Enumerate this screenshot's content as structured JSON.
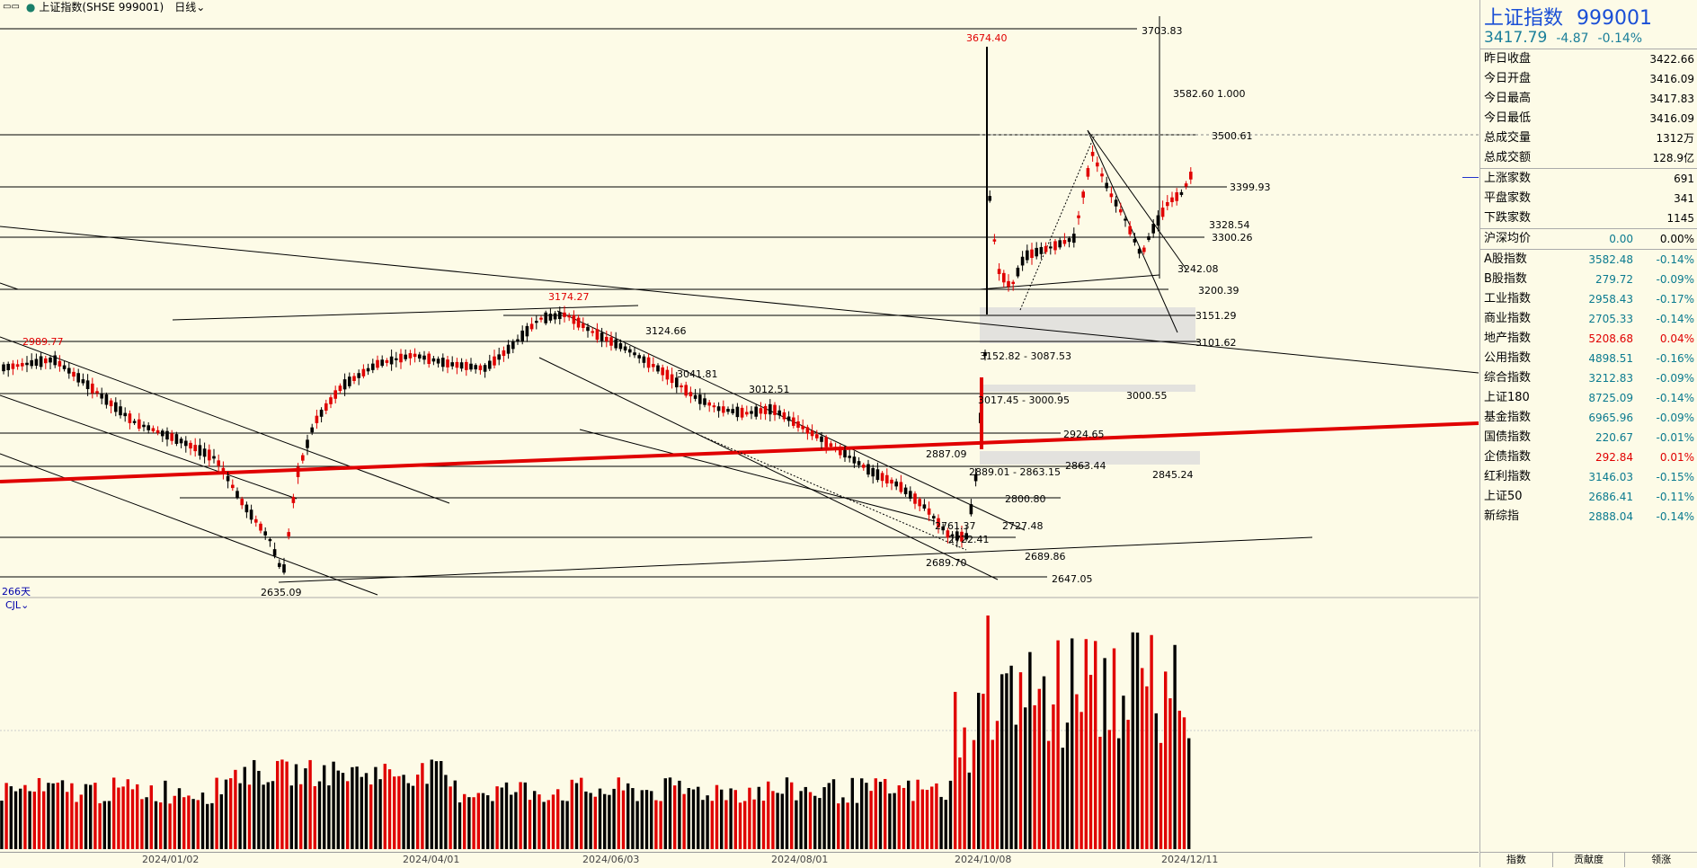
{
  "topbar": {
    "title": "上证指数(SHSE 999001)",
    "period": "日线",
    "menu_icon": "menu-dots-icon"
  },
  "chart": {
    "days_label": "266天",
    "volume_label": "CJL",
    "x_labels": [
      "2024/01/02",
      "2024/04/01",
      "2024/06/03",
      "2024/08/01",
      "2024/10/08",
      "2024/12/11"
    ],
    "price_labels": [
      {
        "text": "3703.83",
        "color": "#000"
      },
      {
        "text": "3674.40",
        "color": "#e00000"
      },
      {
        "text": "3582.60  1.000",
        "color": "#000"
      },
      {
        "text": "3500.61",
        "color": "#000"
      },
      {
        "text": "3399.93",
        "color": "#000"
      },
      {
        "text": "3328.54",
        "color": "#000"
      },
      {
        "text": "3300.26",
        "color": "#000"
      },
      {
        "text": "3242.08",
        "color": "#000"
      },
      {
        "text": "3200.39",
        "color": "#000"
      },
      {
        "text": "3174.27",
        "color": "#e00000"
      },
      {
        "text": "3151.29",
        "color": "#000"
      },
      {
        "text": "3124.66",
        "color": "#000"
      },
      {
        "text": "3101.62",
        "color": "#000"
      },
      {
        "text": "3152.82 - 3087.53",
        "color": "#000"
      },
      {
        "text": "3041.81",
        "color": "#000"
      },
      {
        "text": "3012.51",
        "color": "#000"
      },
      {
        "text": "3017.45 - 3000.95",
        "color": "#000"
      },
      {
        "text": "3000.55",
        "color": "#000"
      },
      {
        "text": "2989.77",
        "color": "#e00000"
      },
      {
        "text": "2924.65",
        "color": "#000"
      },
      {
        "text": "2887.09",
        "color": "#000"
      },
      {
        "text": "2863.44",
        "color": "#000"
      },
      {
        "text": "2889.01 - 2863.15",
        "color": "#000"
      },
      {
        "text": "2845.24",
        "color": "#000"
      },
      {
        "text": "2800.80",
        "color": "#000"
      },
      {
        "text": "2761.37",
        "color": "#000"
      },
      {
        "text": "2727.48",
        "color": "#000"
      },
      {
        "text": "2722.41",
        "color": "#000"
      },
      {
        "text": "2689.86",
        "color": "#000"
      },
      {
        "text": "2689.70",
        "color": "#000"
      },
      {
        "text": "2647.05",
        "color": "#000"
      },
      {
        "text": "2635.09",
        "color": "#000"
      }
    ],
    "colors": {
      "up": "#e00000",
      "down": "#000000",
      "trend_red": "#e00000",
      "background": "#fdfbe7"
    }
  },
  "panel": {
    "name": "上证指数",
    "code": "999001",
    "price": "3417.79",
    "change": "-4.87",
    "change_pct": "-0.14%",
    "stats": [
      {
        "label": "昨日收盘",
        "value": "3422.66"
      },
      {
        "label": "今日开盘",
        "value": "3416.09"
      },
      {
        "label": "今日最高",
        "value": "3417.83"
      },
      {
        "label": "今日最低",
        "value": "3416.09"
      },
      {
        "label": "总成交量",
        "value": "1312万"
      },
      {
        "label": "总成交额",
        "value": "128.9亿"
      }
    ],
    "breadth": [
      {
        "label": "上涨家数",
        "value": "691"
      },
      {
        "label": "平盘家数",
        "value": "341"
      },
      {
        "label": "下跌家数",
        "value": "1145"
      }
    ],
    "hushen": {
      "label": "沪深均价",
      "value": "0.00",
      "pct": "0.00%"
    },
    "indices": [
      {
        "name": "A股指数",
        "value": "3582.48",
        "pct": "-0.14%",
        "dir": "down"
      },
      {
        "name": "B股指数",
        "value": "279.72",
        "pct": "-0.09%",
        "dir": "down"
      },
      {
        "name": "工业指数",
        "value": "2958.43",
        "pct": "-0.17%",
        "dir": "down"
      },
      {
        "name": "商业指数",
        "value": "2705.33",
        "pct": "-0.14%",
        "dir": "down"
      },
      {
        "name": "地产指数",
        "value": "5208.68",
        "pct": "0.04%",
        "dir": "up"
      },
      {
        "name": "公用指数",
        "value": "4898.51",
        "pct": "-0.16%",
        "dir": "down"
      },
      {
        "name": "综合指数",
        "value": "3212.83",
        "pct": "-0.09%",
        "dir": "down"
      },
      {
        "name": "上证180",
        "value": "8725.09",
        "pct": "-0.14%",
        "dir": "down"
      },
      {
        "name": "基金指数",
        "value": "6965.96",
        "pct": "-0.09%",
        "dir": "down"
      },
      {
        "name": "国债指数",
        "value": "220.67",
        "pct": "-0.01%",
        "dir": "down"
      },
      {
        "name": "企债指数",
        "value": "292.84",
        "pct": "0.01%",
        "dir": "up"
      },
      {
        "name": "红利指数",
        "value": "3146.03",
        "pct": "-0.15%",
        "dir": "down"
      },
      {
        "name": "上证50",
        "value": "2686.41",
        "pct": "-0.11%",
        "dir": "down"
      },
      {
        "name": "新综指",
        "value": "2888.04",
        "pct": "-0.14%",
        "dir": "down"
      }
    ],
    "tabs": [
      "指数",
      "贡献度",
      "领涨"
    ]
  }
}
